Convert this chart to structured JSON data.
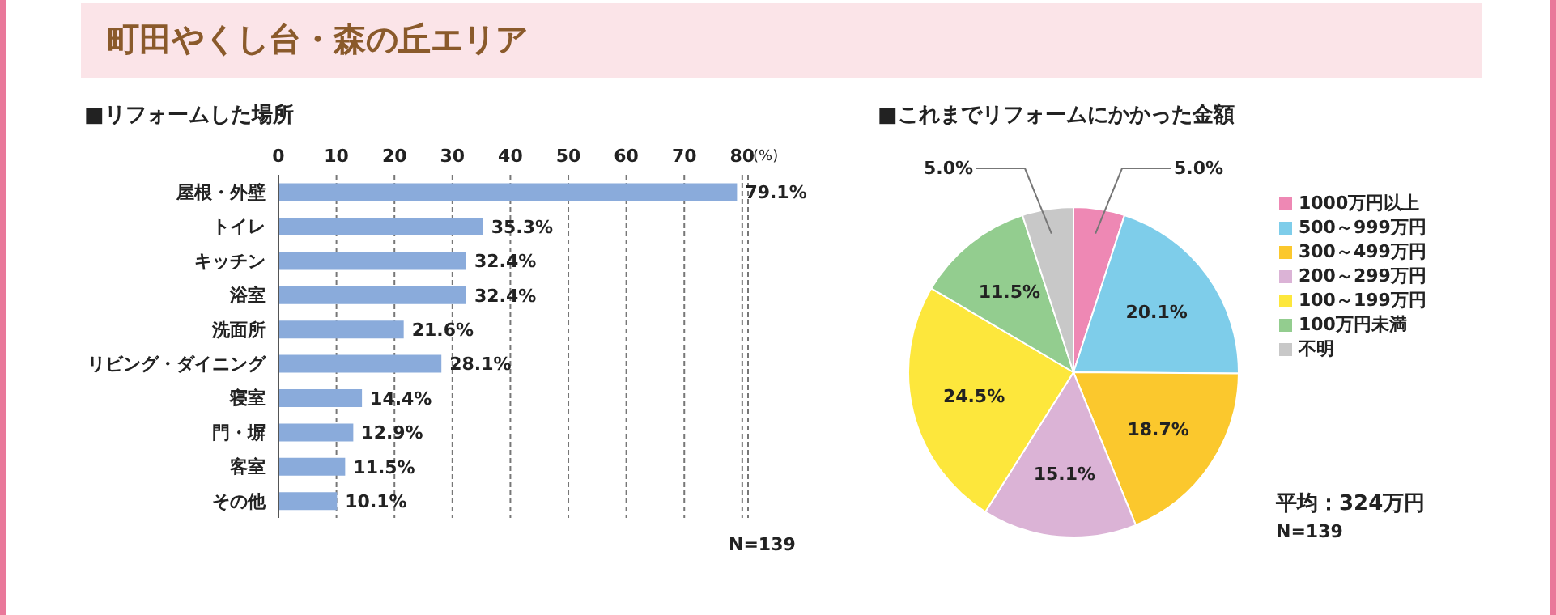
{
  "chart_data": [
    {
      "type": "bar",
      "orientation": "horizontal",
      "title": "町田やくし台・森の丘エリア",
      "subtitle": "■リフォームした場所",
      "xlabel": "(%)",
      "categories": [
        "屋根・外壁",
        "トイレ",
        "キッチン",
        "浴室",
        "洗面所",
        "リビング・ダイニング",
        "寝室",
        "門・塀",
        "客室",
        "その他"
      ],
      "values": [
        79.1,
        35.3,
        32.4,
        32.4,
        21.6,
        28.1,
        14.4,
        12.9,
        11.5,
        10.1
      ],
      "value_labels": [
        "79.1%",
        "35.3%",
        "32.4%",
        "32.4%",
        "21.6%",
        "28.1%",
        "14.4%",
        "12.9%",
        "11.5%",
        "10.1%"
      ],
      "color": "#8aabdb",
      "xlim": [
        0,
        81
      ],
      "xticks": [
        0,
        10,
        20,
        30,
        40,
        50,
        60,
        70,
        80
      ],
      "grid": "x",
      "annotations": [
        "N=139"
      ]
    },
    {
      "type": "pie",
      "title": "■これまでリフォームにかかった金額",
      "categories": [
        "1000万円以上",
        "500～999万円",
        "300～499万円",
        "200～299万円",
        "100～199万円",
        "100万円未満",
        "不明"
      ],
      "values": [
        5.0,
        20.1,
        18.7,
        15.1,
        24.5,
        11.5,
        5.0
      ],
      "value_labels": [
        "5.0%",
        "20.1%",
        "18.7%",
        "15.1%",
        "24.5%",
        "11.5%",
        "5.0%"
      ],
      "colors": [
        "#ee88b4",
        "#7ecdea",
        "#fbc82d",
        "#dbb3d6",
        "#fde73c",
        "#93cd8f",
        "#c8c8c8"
      ],
      "legend": "right",
      "annotations": [
        "平均：324万円",
        "N=139"
      ]
    }
  ]
}
